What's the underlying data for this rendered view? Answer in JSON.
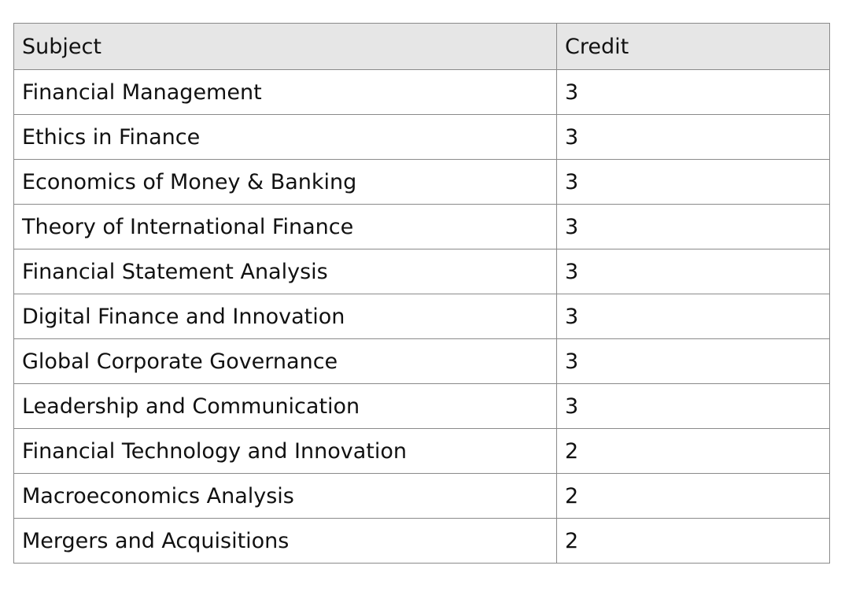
{
  "table": {
    "headers": {
      "subject": "Subject",
      "credit": "Credit"
    },
    "rows": [
      {
        "subject": "Financial Management",
        "credit": "3"
      },
      {
        "subject": "Ethics in Finance",
        "credit": "3"
      },
      {
        "subject": "Economics of Money & Banking",
        "credit": "3"
      },
      {
        "subject": "Theory of International Finance",
        "credit": "3"
      },
      {
        "subject": "Financial Statement Analysis",
        "credit": "3"
      },
      {
        "subject": "Digital Finance and Innovation",
        "credit": "3"
      },
      {
        "subject": "Global Corporate Governance",
        "credit": "3"
      },
      {
        "subject": "Leadership and Communication",
        "credit": "3"
      },
      {
        "subject": "Financial Technology and Innovation",
        "credit": "2"
      },
      {
        "subject": "Macroeconomics Analysis",
        "credit": "2"
      },
      {
        "subject": "Mergers and Acquisitions",
        "credit": "2"
      }
    ]
  },
  "colors": {
    "header_background": "#e6e6e6",
    "border": "#8a8a8a",
    "text": "#111111"
  }
}
